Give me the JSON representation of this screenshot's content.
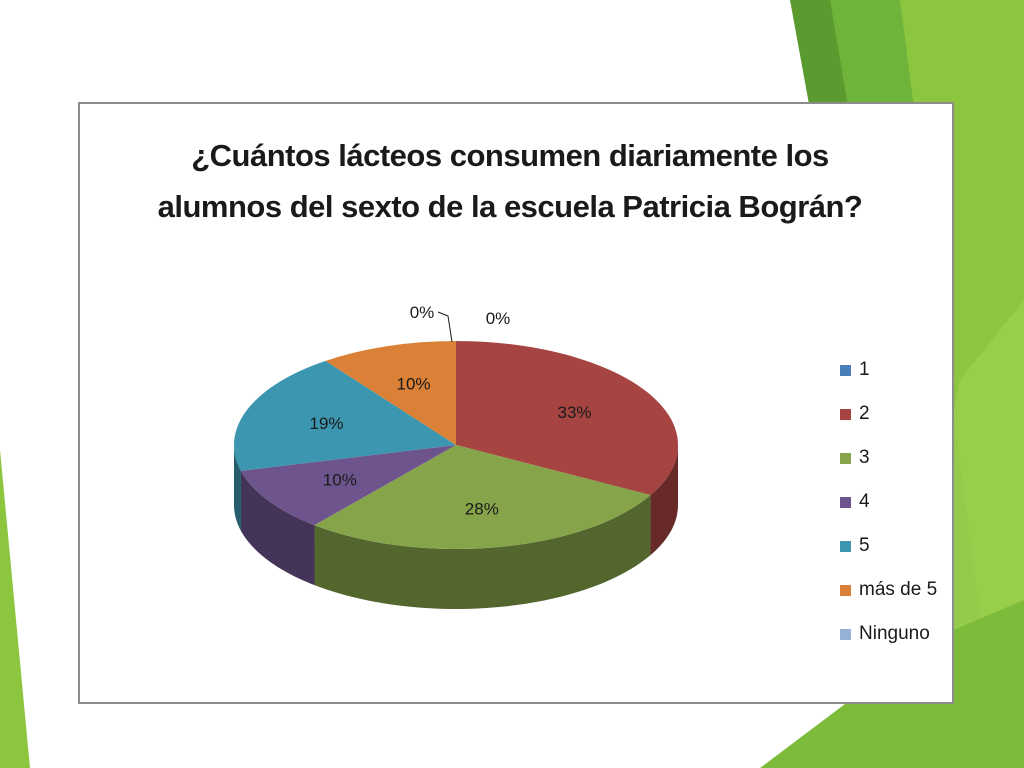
{
  "chart_data": {
    "type": "pie",
    "title": "¿Cuántos lácteos consumen diariamente los alumnos del sexto de la escuela Patricia Bográn?",
    "categories": [
      "1",
      "2",
      "3",
      "4",
      "5",
      "más de 5",
      "Ninguno"
    ],
    "values": [
      0,
      33,
      28,
      10,
      19,
      10,
      0
    ],
    "data_labels": [
      "0%",
      "33%",
      "28%",
      "10%",
      "19%",
      "10%",
      "0%"
    ],
    "colors": [
      "#4a7ebb",
      "#a64442",
      "#86a44a",
      "#6e548d",
      "#3c96b0",
      "#da8137",
      "#95b3d7"
    ],
    "style": "3d",
    "legend_position": "right"
  }
}
